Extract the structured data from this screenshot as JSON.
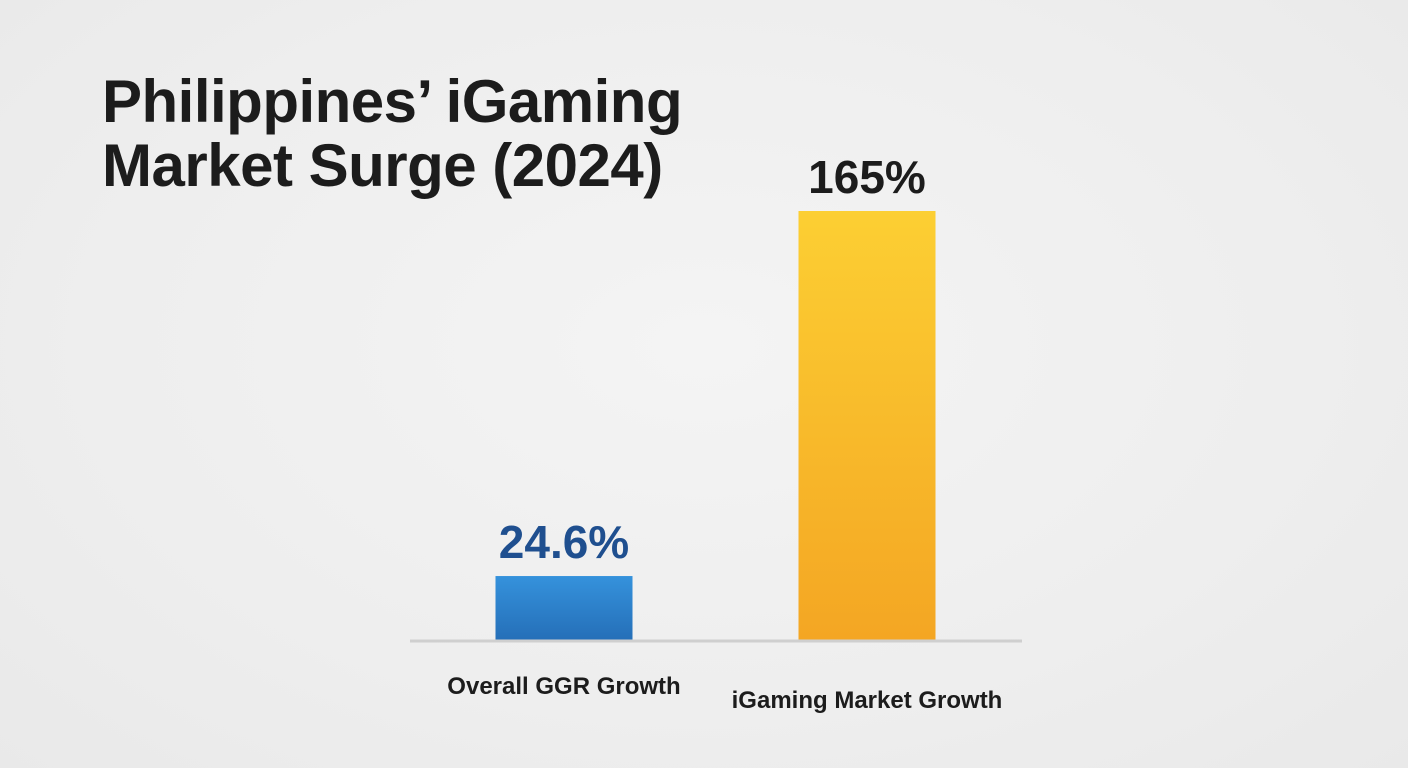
{
  "chart_data": {
    "type": "bar",
    "title": [
      "Philippines’ iGaming",
      "Market Surge (2024)"
    ],
    "categories": [
      "Overall GGR Growth",
      "iGaming Market Growth"
    ],
    "values": [
      24.6,
      165
    ],
    "value_labels": [
      "24.6%",
      "165%"
    ],
    "colors": [
      "#2e86d4",
      "#f7b829"
    ],
    "label_colors": [
      "#1f4f8f",
      "#1c1c1c"
    ],
    "xlabel": "",
    "ylabel": "",
    "ylim": [
      0,
      165
    ],
    "grid": false,
    "legend": "none"
  }
}
